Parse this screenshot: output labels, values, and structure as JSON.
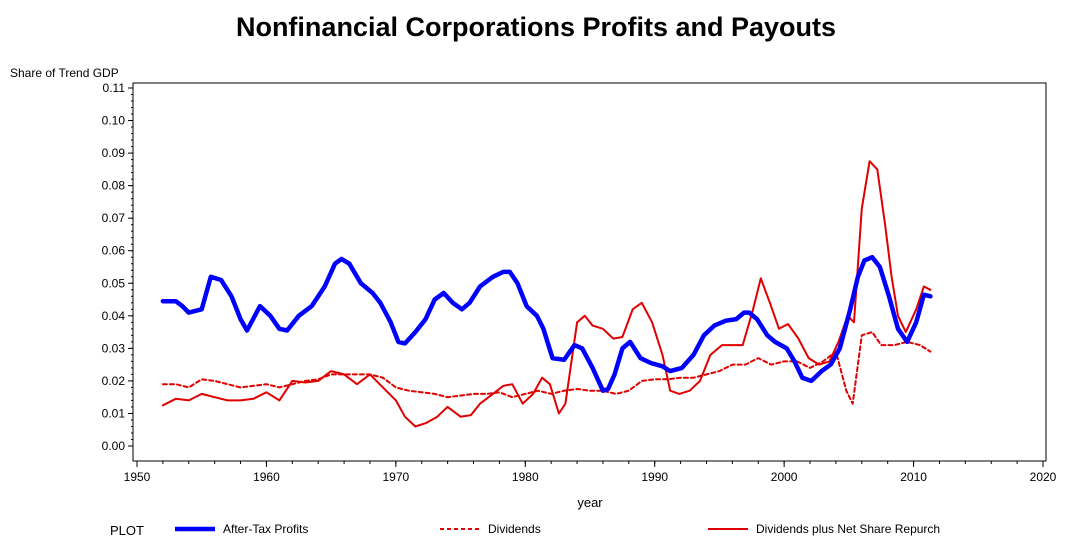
{
  "chart_data": {
    "type": "line",
    "title": "Nonfinancial Corporations Profits and Payouts",
    "ylabel": "Share of Trend GDP",
    "xlabel": "year",
    "xlim": [
      1950,
      2020
    ],
    "ylim": [
      0,
      0.11
    ],
    "xticks": [
      1950,
      1960,
      1970,
      1980,
      1990,
      2000,
      2010,
      2020
    ],
    "yticks": [
      "0.00",
      "0.01",
      "0.02",
      "0.03",
      "0.04",
      "0.05",
      "0.06",
      "0.07",
      "0.08",
      "0.09",
      "0.10",
      "0.11"
    ],
    "legend_title": "PLOT",
    "legend_position": "bottom",
    "grid": false,
    "series": [
      {
        "name": "After-Tax Profits",
        "color": "#0000ff",
        "style": "solid-thick",
        "x": [
          1952,
          1953,
          1953.5,
          1954,
          1955,
          1955.7,
          1956.5,
          1957.3,
          1958,
          1958.5,
          1959.5,
          1960.3,
          1961,
          1961.6,
          1962.5,
          1963.5,
          1964.5,
          1965.3,
          1965.8,
          1966.4,
          1967.3,
          1968.2,
          1968.8,
          1969.6,
          1970.2,
          1970.7,
          1971.5,
          1972.3,
          1973,
          1973.7,
          1974.4,
          1975.1,
          1975.7,
          1976.5,
          1977.5,
          1978.3,
          1978.8,
          1979.4,
          1980.1,
          1980.9,
          1981.4,
          1982.1,
          1983,
          1983.8,
          1984.4,
          1985.2,
          1986,
          1986.4,
          1986.9,
          1987.5,
          1988.1,
          1988.9,
          1989.7,
          1990.6,
          1991.2,
          1992.1,
          1993,
          1993.8,
          1994.6,
          1995.5,
          1996.3,
          1996.9,
          1997.3,
          1997.9,
          1998.7,
          1999.3,
          2000.2,
          2000.8,
          2001.4,
          2002.1,
          2002.9,
          2003.6,
          2004.3,
          2005.1,
          2005.7,
          2006.2,
          2006.8,
          2007.4,
          2008.1,
          2008.8,
          2009.5,
          2010.2,
          2010.8,
          2011.3
        ],
        "values": [
          0.0445,
          0.0445,
          0.043,
          0.041,
          0.042,
          0.052,
          0.051,
          0.046,
          0.039,
          0.0355,
          0.043,
          0.04,
          0.036,
          0.0355,
          0.04,
          0.043,
          0.049,
          0.056,
          0.0575,
          0.056,
          0.05,
          0.047,
          0.044,
          0.038,
          0.032,
          0.0315,
          0.035,
          0.039,
          0.045,
          0.047,
          0.044,
          0.042,
          0.044,
          0.049,
          0.052,
          0.0535,
          0.0535,
          0.05,
          0.043,
          0.04,
          0.036,
          0.027,
          0.0265,
          0.031,
          0.03,
          0.024,
          0.017,
          0.0175,
          0.022,
          0.03,
          0.032,
          0.027,
          0.0255,
          0.0245,
          0.023,
          0.024,
          0.028,
          0.034,
          0.037,
          0.0385,
          0.039,
          0.041,
          0.041,
          0.039,
          0.034,
          0.032,
          0.03,
          0.026,
          0.021,
          0.02,
          0.023,
          0.025,
          0.03,
          0.042,
          0.052,
          0.057,
          0.058,
          0.055,
          0.046,
          0.036,
          0.032,
          0.038,
          0.0465,
          0.046
        ]
      },
      {
        "name": "Dividends",
        "color": "#e00000",
        "style": "dashed",
        "x": [
          1952,
          1953,
          1954,
          1955,
          1956,
          1957,
          1958,
          1959,
          1960,
          1961,
          1962,
          1963,
          1964,
          1965,
          1966,
          1967,
          1968,
          1969,
          1970,
          1971,
          1972,
          1973,
          1974,
          1975,
          1976,
          1977,
          1978,
          1979,
          1980,
          1981,
          1982,
          1983,
          1984,
          1985,
          1986,
          1987,
          1988,
          1989,
          1990,
          1991,
          1992,
          1993,
          1994,
          1995,
          1996,
          1997,
          1998,
          1999,
          2000,
          2001,
          2002,
          2003,
          2004,
          2004.8,
          2005.3,
          2006,
          2006.8,
          2007.5,
          2008.5,
          2009.5,
          2010.5,
          2011.3
        ],
        "values": [
          0.019,
          0.019,
          0.018,
          0.0205,
          0.02,
          0.019,
          0.018,
          0.0185,
          0.019,
          0.018,
          0.019,
          0.02,
          0.0205,
          0.022,
          0.022,
          0.022,
          0.022,
          0.021,
          0.018,
          0.017,
          0.0165,
          0.016,
          0.015,
          0.0155,
          0.016,
          0.016,
          0.0165,
          0.015,
          0.016,
          0.017,
          0.016,
          0.017,
          0.0175,
          0.017,
          0.017,
          0.016,
          0.017,
          0.02,
          0.0205,
          0.0205,
          0.021,
          0.021,
          0.022,
          0.023,
          0.025,
          0.025,
          0.027,
          0.025,
          0.026,
          0.026,
          0.024,
          0.026,
          0.029,
          0.017,
          0.013,
          0.034,
          0.035,
          0.031,
          0.031,
          0.032,
          0.031,
          0.029
        ]
      },
      {
        "name": "Dividends plus Net Share Repurch",
        "color": "#e00000",
        "style": "solid",
        "x": [
          1952,
          1953,
          1954,
          1955,
          1956,
          1957,
          1958,
          1959,
          1960,
          1961,
          1962,
          1963,
          1964,
          1965,
          1966,
          1967,
          1968,
          1969,
          1970,
          1970.7,
          1971.5,
          1972.3,
          1973.2,
          1974,
          1975,
          1975.8,
          1976.5,
          1977.5,
          1978.3,
          1979,
          1979.8,
          1980.6,
          1981.3,
          1981.9,
          1982.6,
          1983.1,
          1984,
          1984.6,
          1985.2,
          1986,
          1986.8,
          1987.5,
          1988.3,
          1989,
          1989.8,
          1990.6,
          1991.2,
          1991.9,
          1992.7,
          1993.5,
          1994.3,
          1995.2,
          1996,
          1996.8,
          1997.6,
          1998.2,
          1998.9,
          1999.6,
          2000.3,
          2001.1,
          2001.9,
          2002.7,
          2003.5,
          2004.2,
          2004.9,
          2005.4,
          2006,
          2006.6,
          2007.2,
          2007.8,
          2008.3,
          2008.8,
          2009.4,
          2010.2,
          2010.8,
          2011.3
        ],
        "values": [
          0.0125,
          0.0145,
          0.014,
          0.016,
          0.015,
          0.014,
          0.014,
          0.0145,
          0.0165,
          0.014,
          0.02,
          0.0195,
          0.02,
          0.023,
          0.022,
          0.019,
          0.022,
          0.018,
          0.014,
          0.009,
          0.006,
          0.007,
          0.009,
          0.012,
          0.009,
          0.0095,
          0.013,
          0.016,
          0.0185,
          0.019,
          0.013,
          0.016,
          0.021,
          0.019,
          0.01,
          0.013,
          0.038,
          0.04,
          0.037,
          0.036,
          0.033,
          0.0335,
          0.042,
          0.044,
          0.038,
          0.028,
          0.017,
          0.016,
          0.017,
          0.02,
          0.028,
          0.031,
          0.031,
          0.031,
          0.042,
          0.0515,
          0.044,
          0.036,
          0.0375,
          0.033,
          0.027,
          0.025,
          0.026,
          0.032,
          0.04,
          0.038,
          0.073,
          0.0875,
          0.085,
          0.068,
          0.052,
          0.04,
          0.035,
          0.042,
          0.049,
          0.048
        ]
      }
    ]
  }
}
